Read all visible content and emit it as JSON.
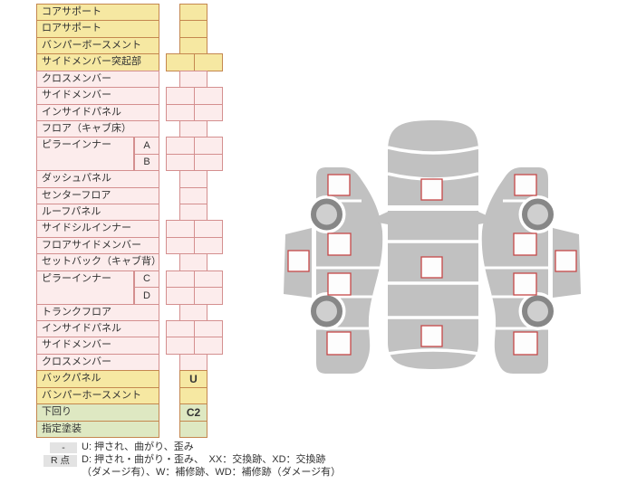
{
  "colors": {
    "yellow_bg": "#F6E8A2",
    "yellow_border": "#C4874F",
    "pink_bg": "#FCECEC",
    "pink_border": "#D48F8F",
    "green_bg": "#DEE8C2",
    "green_border": "#C4874F",
    "text": "#333333",
    "car_body": "#C1C1C1",
    "wheel_ring": "#878787",
    "wheel_hub": "#CFCFCF",
    "checkbox_border": "#C64848",
    "checkbox_fill": "#FDFDFD",
    "note_box_bg": "#E3E3E3"
  },
  "table": {
    "rows": [
      {
        "label": "コアサポート",
        "color": "yellow",
        "cells": "single",
        "value": ""
      },
      {
        "label": "ロアサポート",
        "color": "yellow",
        "cells": "single",
        "value": ""
      },
      {
        "label": "バンパーボースメント",
        "color": "yellow",
        "cells": "single",
        "value": ""
      },
      {
        "label": "サイドメンバー突起部",
        "color": "yellow",
        "cells": "double",
        "value": ""
      },
      {
        "label": "クロスメンバー",
        "color": "pink",
        "cells": "single",
        "value": ""
      },
      {
        "label": "サイドメンバー",
        "color": "pink",
        "cells": "double",
        "value": ""
      },
      {
        "label": "インサイドパネル",
        "color": "pink",
        "cells": "double",
        "value": ""
      },
      {
        "label": "フロア（キャブ床）",
        "color": "pink",
        "cells": "single",
        "value": ""
      },
      {
        "label": "ピラーインナー",
        "sub": "A",
        "span": 2,
        "color": "pink",
        "cells": "double",
        "value": ""
      },
      {
        "label": "",
        "sub": "B",
        "span": 0,
        "color": "pink",
        "cells": "double",
        "value": ""
      },
      {
        "label": "ダッシュパネル",
        "color": "pink",
        "cells": "single",
        "value": ""
      },
      {
        "label": "センターフロア",
        "color": "pink",
        "cells": "single",
        "value": ""
      },
      {
        "label": "ルーフパネル",
        "color": "pink",
        "cells": "single",
        "value": ""
      },
      {
        "label": "サイドシルインナー",
        "color": "pink",
        "cells": "double",
        "value": ""
      },
      {
        "label": "フロアサイドメンバー",
        "color": "pink",
        "cells": "double",
        "value": ""
      },
      {
        "label": "セットバック（キャブ背）",
        "color": "pink",
        "cells": "single",
        "value": ""
      },
      {
        "label": "ピラーインナー",
        "sub": "C",
        "span": 2,
        "color": "pink",
        "cells": "double",
        "value": ""
      },
      {
        "label": "",
        "sub": "D",
        "span": 0,
        "color": "pink",
        "cells": "double",
        "value": ""
      },
      {
        "label": "トランクフロア",
        "color": "pink",
        "cells": "single",
        "value": ""
      },
      {
        "label": "インサイドパネル",
        "color": "pink",
        "cells": "double",
        "value": ""
      },
      {
        "label": "サイドメンバー",
        "color": "pink",
        "cells": "double",
        "value": ""
      },
      {
        "label": "クロスメンバー",
        "color": "pink",
        "cells": "single",
        "value": ""
      },
      {
        "label": "バックパネル",
        "color": "yellow",
        "cells": "single",
        "value": "U"
      },
      {
        "label": "バンパーホースメント",
        "color": "yellow",
        "cells": "single",
        "value": ""
      },
      {
        "label": "下回り",
        "color": "green",
        "cells": "single",
        "value": "C2"
      },
      {
        "label": "指定塗装",
        "color": "green",
        "cells": "single",
        "value": ""
      }
    ]
  },
  "legend": {
    "row1_key": "-",
    "row1_text": "U: 押され、曲がり、歪み",
    "row2_key": "R 点",
    "row2_text": "D: 押され・曲がり・歪み、　XX：交換跡、XD：交換跡",
    "row3_text": "（ダメージ有）、W：補修跡、WD：補修跡（ダメージ有）"
  }
}
